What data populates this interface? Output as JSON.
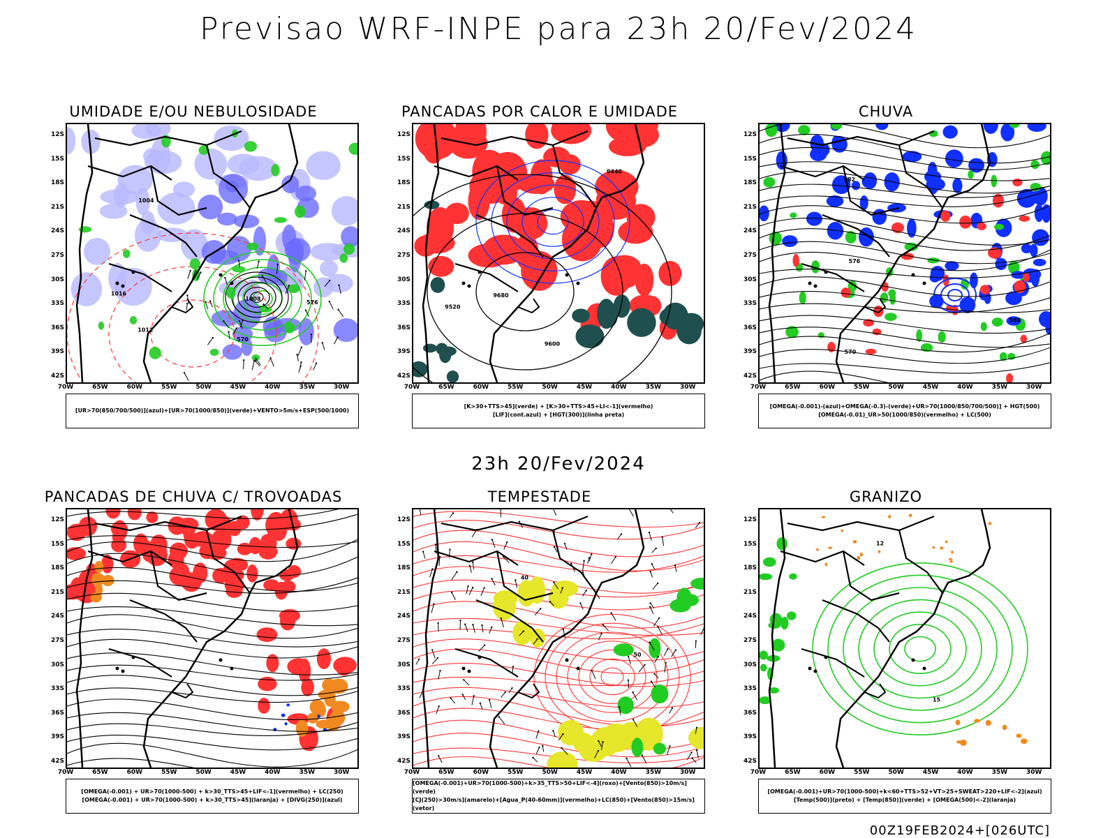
{
  "header": {
    "title": "Previsao WRF-INPE  para 23h 20/Fev/2024"
  },
  "mid_label": "23h 20/Fev/2024",
  "footer": "00Z19FEB2024+[026UTC]",
  "axes": {
    "lat_labels": [
      "12S",
      "15S",
      "18S",
      "21S",
      "24S",
      "27S",
      "30S",
      "33S",
      "36S",
      "39S",
      "42S"
    ],
    "lon_labels": [
      "70W",
      "65W",
      "60W",
      "55W",
      "50W",
      "45W",
      "40W",
      "35W",
      "30W"
    ]
  },
  "colors": {
    "blue": "#1030ff",
    "green": "#22cc22",
    "red": "#ff3333",
    "lilac": "#b8b8ff",
    "dark_teal": "#1f4f4f",
    "orange": "#f08a20",
    "yellow": "#e6e62a"
  },
  "panels": [
    {
      "id": "umidade",
      "title": "UMIDADE E/OU NEBULOSIDADE",
      "legend": [
        "[UR>70(850/700/500)](azul)+[UR>70(1000/850)](verde)+VENTO>5m/s+ESP(500/1000)"
      ],
      "contour_labels": [
        "1012",
        "1008",
        "1016",
        "1004",
        "570",
        "576"
      ]
    },
    {
      "id": "pancadas_calor",
      "title": "PANCADAS POR CALOR E UMIDADE",
      "legend": [
        "[K>30+TTS>45](verde) + [K>30+TTS>45+LI<-1](vermelho)",
        "[LIF](cont.azul) + [HGT(300)](linha preta)"
      ],
      "contour_labels": [
        "9680",
        "9600",
        "9520",
        "9440"
      ]
    },
    {
      "id": "chuva",
      "title": "CHUVA",
      "legend": [
        "[OMEGA(-0.001)-(azul)+OMEGA(-0.3)-(verde)+UR>70(1000/850/700/500)] + HGT(500)",
        "[OMEGA(-0.01)_UR>50(1000/850)(vermelho) + LC(500)"
      ],
      "contour_labels": [
        "576",
        "582",
        "588",
        "570"
      ]
    },
    {
      "id": "trovoadas",
      "title": "PANCADAS DE CHUVA C/ TROVOADAS",
      "legend": [
        "[OMEGA(-0.001) + UR>70(1000-500) + k>30_TTS>45+LIF<-1](vermelho) + LC(250)",
        "[OMEGA(-0.001) + UR>70(1000-500) + k>30_TTS>45](laranja) + [DIVG(250)](azul)"
      ],
      "contour_labels": []
    },
    {
      "id": "tempestade",
      "title": "TEMPESTADE",
      "legend": [
        "[OMEGA(-0.001)+UR>70(1000-500)+k>35_TTS>50+LIF<-4](roxo)+[Vento(850)>10m/s](verde)",
        "[CJ(250)>30m/s](amarelo)+[Agua_P(40-60mm)](vermelho)+LC(850)+[Vento(850)>15m/s](vetor)"
      ],
      "contour_labels": [
        "40",
        "50"
      ]
    },
    {
      "id": "granizo",
      "title": "GRANIZO",
      "legend": [
        "[OMEGA(-0.001)+UR>70(1000-500)+k<60+TTS>52+VT>25+SWEAT>220+LIF<-2](azul)",
        "[Temp(500)](preto) + [Temp(850)](verde) + [OMEGA(500)<-2](laranja)"
      ],
      "contour_labels": [
        "12",
        "15"
      ]
    }
  ]
}
